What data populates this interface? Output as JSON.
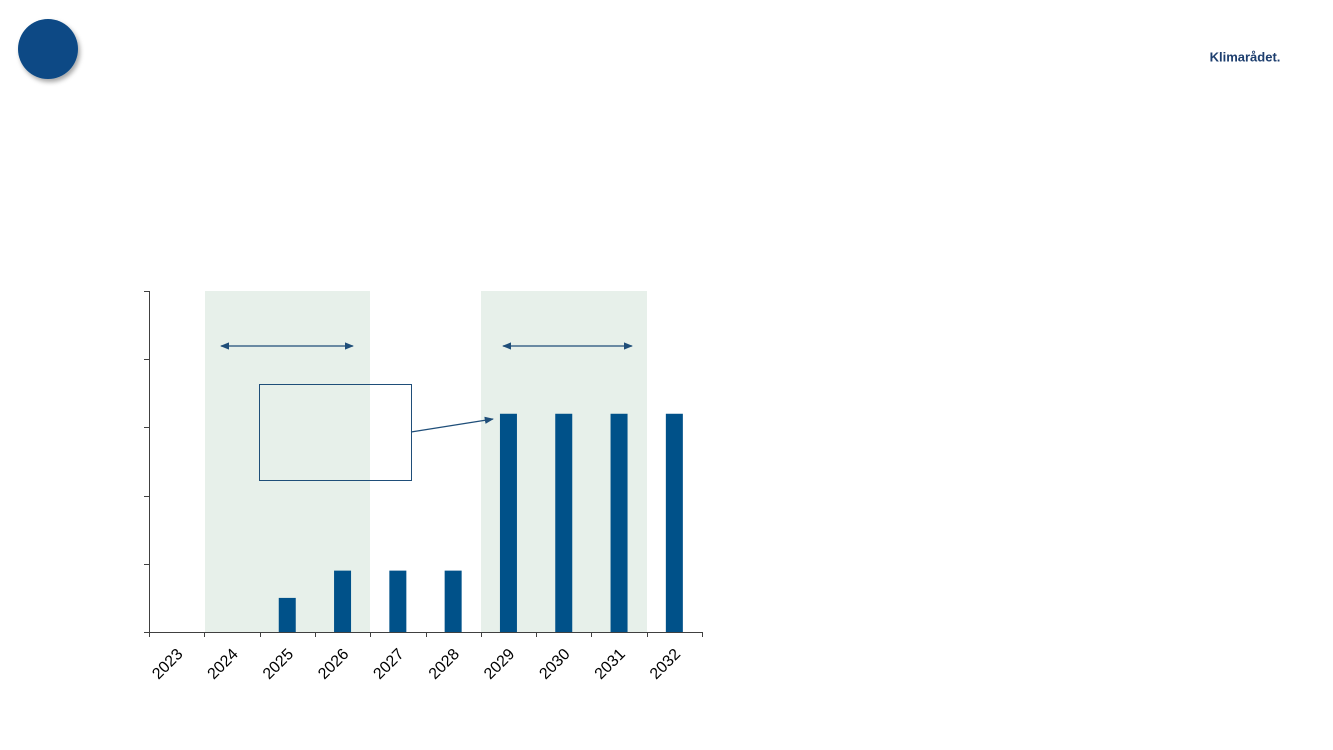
{
  "header": {
    "logo": "Klimarådet."
  },
  "chart_data": {
    "type": "bar",
    "categories": [
      "2023",
      "2024",
      "2025",
      "2026",
      "2027",
      "2028",
      "2029",
      "2030",
      "2031",
      "2032"
    ],
    "values": [
      null,
      null,
      0.5,
      0.9,
      0.9,
      0.9,
      3.2,
      3.2,
      3.2,
      3.2
    ],
    "color": "#005189",
    "ylim": [
      0,
      5
    ],
    "yticks": [
      0,
      1,
      2,
      3,
      4,
      5
    ],
    "grid": false
  }
}
